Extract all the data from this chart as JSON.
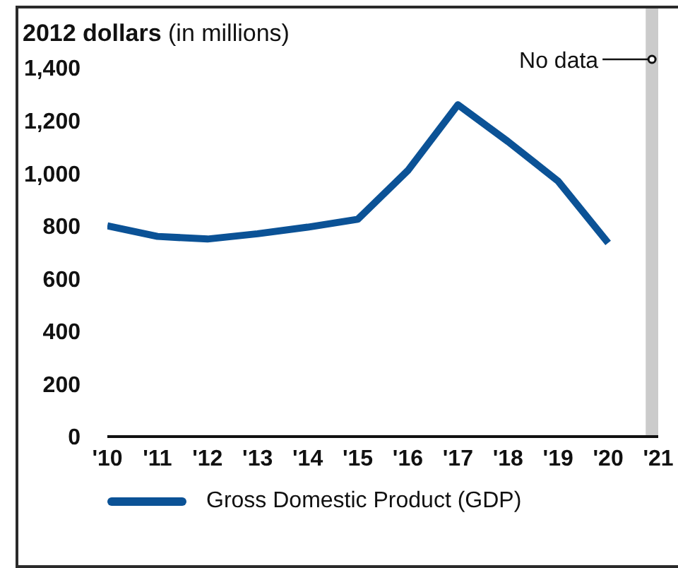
{
  "chart_data": {
    "type": "line",
    "ylabel": "2012 dollars (in millions)",
    "x": [
      2010,
      2011,
      2012,
      2013,
      2014,
      2015,
      2016,
      2017,
      2018,
      2019,
      2020
    ],
    "series": [
      {
        "name": "Gross Domestic Product (GDP)",
        "color": "#0b5296",
        "values": [
          800,
          760,
          750,
          770,
          795,
          825,
          1010,
          1260,
          1120,
          970,
          735
        ]
      }
    ],
    "xlim": [
      2010,
      2021
    ],
    "xticks": [
      {
        "value": 2010,
        "label": "'10"
      },
      {
        "value": 2011,
        "label": "'11"
      },
      {
        "value": 2012,
        "label": "'12"
      },
      {
        "value": 2013,
        "label": "'13"
      },
      {
        "value": 2014,
        "label": "'14"
      },
      {
        "value": 2015,
        "label": "'15"
      },
      {
        "value": 2016,
        "label": "'16"
      },
      {
        "value": 2017,
        "label": "'17"
      },
      {
        "value": 2018,
        "label": "'18"
      },
      {
        "value": 2019,
        "label": "'19"
      },
      {
        "value": 2020,
        "label": "'20"
      },
      {
        "value": 2021,
        "label": "'21"
      }
    ],
    "ylim": [
      0,
      1400
    ],
    "yticks": [
      0,
      200,
      400,
      600,
      800,
      {
        "value": 1000,
        "label": "1,000"
      },
      {
        "value": 1200,
        "label": "1,200"
      },
      {
        "value": 1400,
        "label": "1,400"
      }
    ],
    "bands": [
      {
        "axis": "x",
        "from": 2020.75,
        "to": 2021,
        "label": "No data",
        "color": "#cbcbcb"
      }
    ],
    "legend": "bottom",
    "marker": "none",
    "line_style": "solid"
  }
}
